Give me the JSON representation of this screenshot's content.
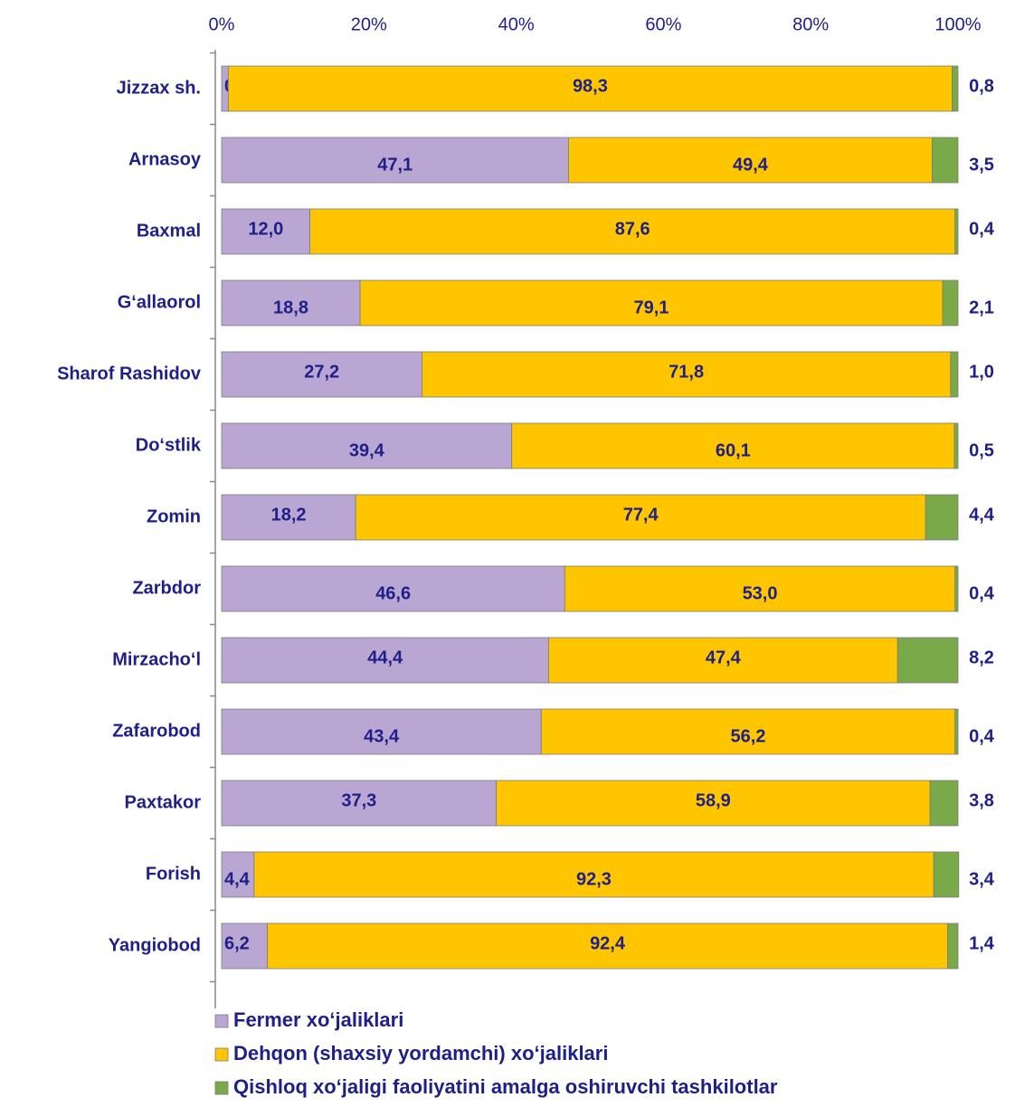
{
  "chart_data": {
    "type": "stacked_barh",
    "categories": [
      "Jizzax sh.",
      "Arnasoy",
      "Baxmal",
      "G‘allaorol",
      "Sharof Rashidov",
      "Do‘stlik",
      "Zomin",
      "Zarbdor",
      "Mirzacho‘l",
      "Zafarobod",
      "Paxtakor",
      "Forish",
      "Yangiobod"
    ],
    "series": [
      {
        "name": "Fermer xo‘jaliklari",
        "color": "#b9a6d2",
        "values": [
          0.9,
          47.1,
          12.0,
          18.8,
          27.2,
          39.4,
          18.2,
          46.6,
          44.4,
          43.4,
          37.3,
          4.4,
          6.2
        ],
        "value_labels": [
          "0,9",
          "47,1",
          "12,0",
          "18,8",
          "27,2",
          "39,4",
          "18,2",
          "46,6",
          "44,4",
          "43,4",
          "37,3",
          "4,4",
          "6,2"
        ]
      },
      {
        "name": "Dehqon (shaxsiy yordamchi) xo‘jaliklari",
        "color": "#ffc600",
        "values": [
          98.3,
          49.4,
          87.6,
          79.1,
          71.8,
          60.1,
          77.4,
          53.0,
          47.4,
          56.2,
          58.9,
          92.3,
          92.4
        ],
        "value_labels": [
          "98,3",
          "49,4",
          "87,6",
          "79,1",
          "71,8",
          "60,1",
          "77,4",
          "53,0",
          "47,4",
          "56,2",
          "58,9",
          "92,3",
          "92,4"
        ]
      },
      {
        "name": "Qishloq xo‘jaligi faoliyatini amalga oshiruvchi tashkilotlar",
        "color": "#7aa94a",
        "values": [
          0.8,
          3.5,
          0.4,
          2.1,
          1.0,
          0.5,
          4.4,
          0.4,
          8.2,
          0.4,
          3.8,
          3.4,
          1.4
        ],
        "value_labels": [
          "0,8",
          "3,5",
          "0,4",
          "2,1",
          "1,0",
          "0,5",
          "4,4",
          "0,4",
          "8,2",
          "0,4",
          "3,8",
          "3,4",
          "1,4"
        ]
      }
    ],
    "xlim": [
      0,
      100
    ],
    "xticks": [
      {
        "value": 0,
        "label": "0%"
      },
      {
        "value": 20,
        "label": "20%"
      },
      {
        "value": 40,
        "label": "40%"
      },
      {
        "value": 60,
        "label": "60%"
      },
      {
        "value": 80,
        "label": "80%"
      },
      {
        "value": 100,
        "label": "100%"
      }
    ],
    "legend": "bottom"
  }
}
